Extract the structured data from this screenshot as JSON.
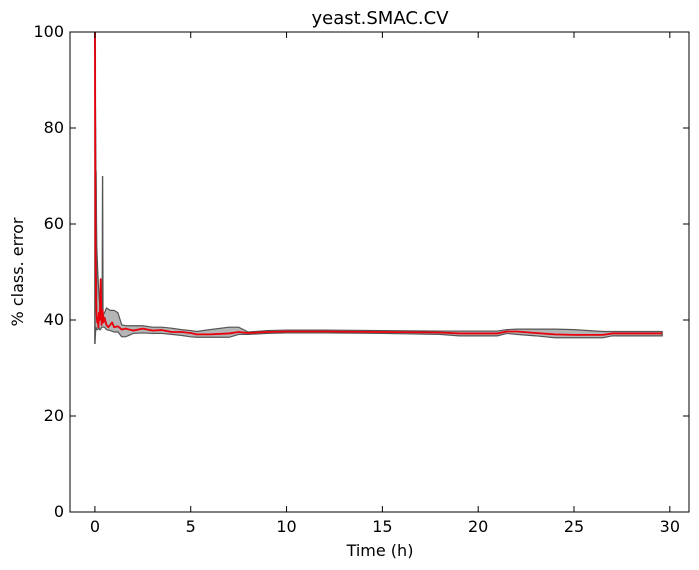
{
  "chart_data": {
    "type": "line",
    "title": "yeast.SMAC.CV",
    "xlabel": "Time (h)",
    "ylabel": "% class. error",
    "xlim": [
      -1.3,
      31.0
    ],
    "ylim": [
      0,
      100
    ],
    "xticks": [
      0,
      5,
      10,
      15,
      20,
      25,
      30
    ],
    "yticks": [
      0,
      20,
      40,
      60,
      80,
      100
    ],
    "grid": false,
    "legend": "none",
    "colors": {
      "mean": "#e8000b",
      "band_fill": "#a8a8a8",
      "band_edge": "#555555"
    },
    "series": [
      {
        "role": "mean",
        "x": [
          0.0,
          0.03,
          0.06,
          0.09,
          0.12,
          0.15,
          0.18,
          0.21,
          0.25,
          0.3,
          0.35,
          0.4,
          0.45,
          0.5,
          0.6,
          0.7,
          0.8,
          0.9,
          1.0,
          1.2,
          1.4,
          1.6,
          2.0,
          2.5,
          3.0,
          3.5,
          4.0,
          4.5,
          5.0,
          5.3,
          6.0,
          7.0,
          7.5,
          8.0,
          9.0,
          10.0,
          12.0,
          15.0,
          18.0,
          19.0,
          21.0,
          21.5,
          22.0,
          23.0,
          24.0,
          25.0,
          26.5,
          27.0,
          29.6
        ],
        "y": [
          100,
          55,
          44,
          41,
          39.5,
          40.5,
          38.5,
          41.5,
          40,
          48.5,
          39,
          42,
          39.5,
          40.5,
          39,
          38.5,
          39,
          39.5,
          38.5,
          38.7,
          38,
          38.2,
          37.8,
          38.2,
          37.8,
          37.9,
          37.5,
          37.5,
          37.3,
          37.0,
          37.0,
          37.2,
          37.5,
          37.3,
          37.5,
          37.6,
          37.6,
          37.5,
          37.4,
          37.2,
          37.2,
          37.6,
          37.6,
          37.3,
          37.0,
          36.9,
          36.9,
          37.2,
          37.2
        ]
      },
      {
        "role": "band_upper",
        "x": [
          0.0,
          0.05,
          0.1,
          0.15,
          0.2,
          0.25,
          0.3,
          0.35,
          0.4,
          0.5,
          0.6,
          0.8,
          1.0,
          1.2,
          1.4,
          1.6,
          2.0,
          2.5,
          3.0,
          3.5,
          4.0,
          4.5,
          5.0,
          5.3,
          6.0,
          7.0,
          7.5,
          8.0,
          9.0,
          10.0,
          12.0,
          15.0,
          18.0,
          19.0,
          21.0,
          21.5,
          22.0,
          23.0,
          24.0,
          25.0,
          26.5,
          27.0,
          29.6
        ],
        "y": [
          100,
          72,
          55,
          50,
          46,
          43,
          42,
          42.5,
          41,
          41.5,
          42.5,
          42,
          42,
          41.5,
          39,
          38.8,
          38.8,
          38.8,
          38.5,
          38.5,
          38.3,
          38.0,
          37.8,
          37.6,
          38.0,
          38.5,
          38.5,
          37.5,
          37.8,
          37.9,
          37.9,
          37.8,
          37.7,
          37.7,
          37.7,
          38.0,
          38.1,
          38.1,
          38.1,
          38.0,
          37.6,
          37.6,
          37.6
        ]
      },
      {
        "role": "band_lower",
        "x": [
          0.0,
          0.05,
          0.1,
          0.15,
          0.2,
          0.25,
          0.3,
          0.35,
          0.4,
          0.5,
          0.6,
          0.8,
          1.0,
          1.2,
          1.4,
          1.6,
          2.0,
          2.5,
          3.0,
          3.5,
          4.0,
          4.5,
          5.0,
          5.3,
          6.0,
          7.0,
          7.5,
          8.0,
          9.0,
          10.0,
          12.0,
          15.0,
          18.0,
          19.0,
          21.0,
          21.5,
          22.0,
          23.0,
          24.0,
          25.0,
          26.5,
          27.0,
          29.6
        ],
        "y": [
          35,
          38.5,
          38,
          38,
          38.5,
          38,
          38,
          38.5,
          38.5,
          38.5,
          38,
          37.8,
          37.5,
          37.5,
          36.5,
          36.5,
          37.2,
          37.3,
          37.2,
          37.2,
          37.0,
          36.8,
          36.5,
          36.4,
          36.4,
          36.4,
          37.0,
          37.0,
          37.2,
          37.3,
          37.3,
          37.2,
          37.0,
          36.7,
          36.7,
          37.2,
          37.0,
          36.7,
          36.3,
          36.3,
          36.3,
          36.7,
          36.7
        ]
      },
      {
        "role": "outlier_run",
        "x": [
          0.0,
          0.02,
          0.04,
          0.06,
          0.08,
          0.1
        ],
        "y": [
          35.0,
          100,
          45,
          71,
          42,
          55
        ]
      },
      {
        "role": "outlier_run",
        "x": [
          0.38,
          0.4,
          0.42
        ],
        "y": [
          40,
          70,
          40
        ]
      }
    ]
  }
}
